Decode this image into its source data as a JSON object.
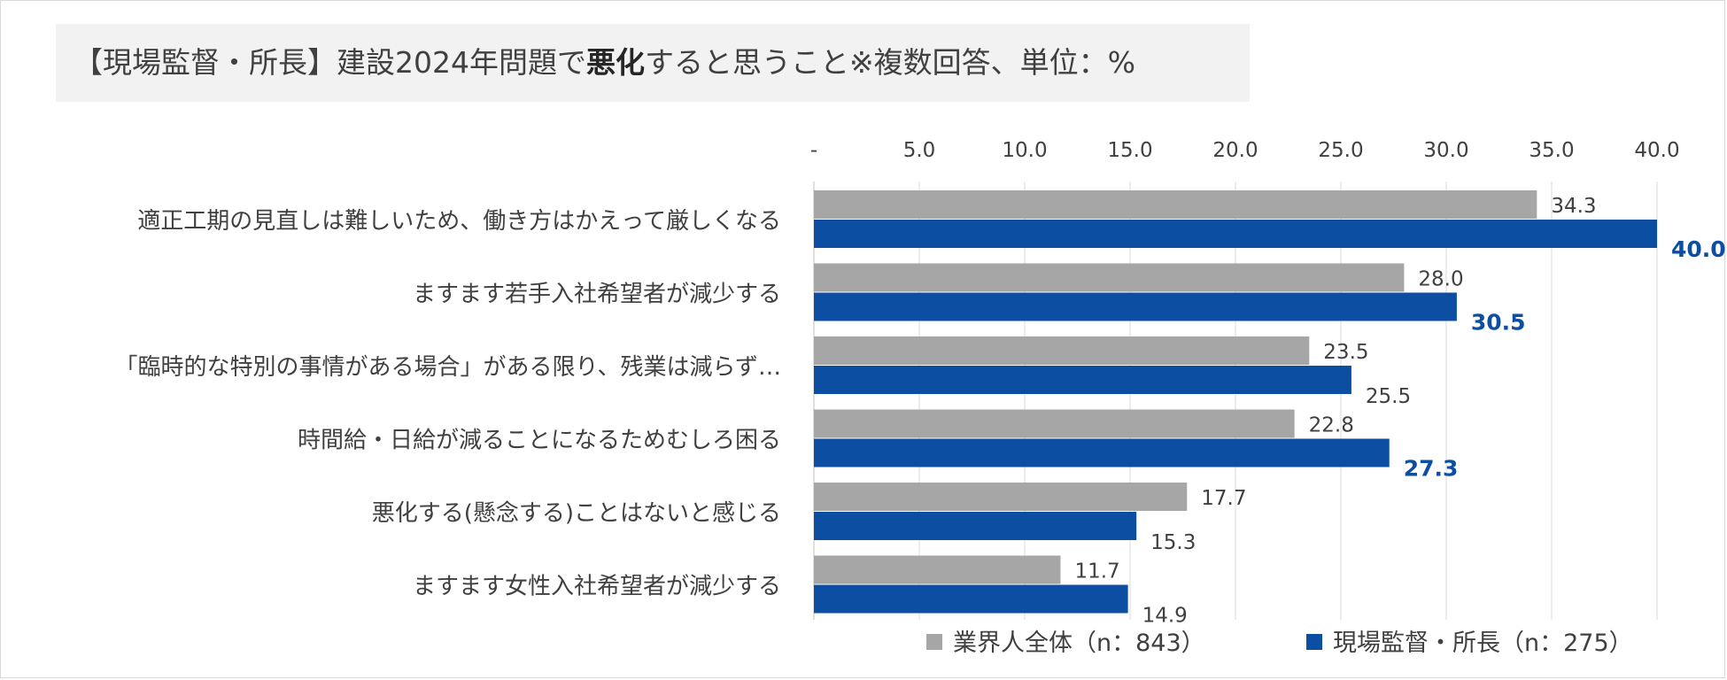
{
  "title": {
    "before": "【現場監督・所長】建設2024年問題で",
    "emph": "悪化",
    "after": "すると思うこと※複数回答、単位：%"
  },
  "chart_data": {
    "type": "bar",
    "orientation": "horizontal",
    "title": "【現場監督・所長】建設2024年問題で悪化すると思うこと※複数回答、単位：%",
    "categories": [
      "適正工期の見直しは難しいため、働き方はかえって厳しくなる",
      "ますます若手入社希望者が減少する",
      "「臨時的な特別の事情がある場合」がある限り、残業は減らず…",
      "時間給・日給が減ることになるためむしろ困る",
      "悪化する(懸念する)ことはないと感じる",
      "ますます女性入社希望者が減少する"
    ],
    "series": [
      {
        "name": "業界人全体（n：843）",
        "color": "#a6a6a6",
        "values": [
          34.3,
          28.0,
          23.5,
          22.8,
          17.7,
          11.7
        ],
        "labels": [
          "34.3",
          "28.0",
          "23.5",
          "22.8",
          "17.7",
          "11.7"
        ],
        "highlight": [
          false,
          false,
          false,
          false,
          false,
          false
        ]
      },
      {
        "name": "現場監督・所長（n：275）",
        "color": "#0b4ea2",
        "values": [
          40.0,
          30.5,
          25.5,
          27.3,
          15.3,
          14.9
        ],
        "labels": [
          "40.0",
          "30.5",
          "25.5",
          "27.3",
          "15.3",
          "14.9"
        ],
        "highlight": [
          true,
          true,
          false,
          true,
          false,
          false
        ]
      }
    ],
    "xlim": [
      0,
      40
    ],
    "ticks": [
      0,
      5,
      10,
      15,
      20,
      25,
      30,
      35,
      40
    ],
    "tick_labels": [
      "-",
      "5.0",
      "10.0",
      "15.0",
      "20.0",
      "25.0",
      "30.0",
      "35.0",
      "40.0"
    ],
    "xaxis_position": "top",
    "grid": true,
    "legend_position": "bottom"
  }
}
